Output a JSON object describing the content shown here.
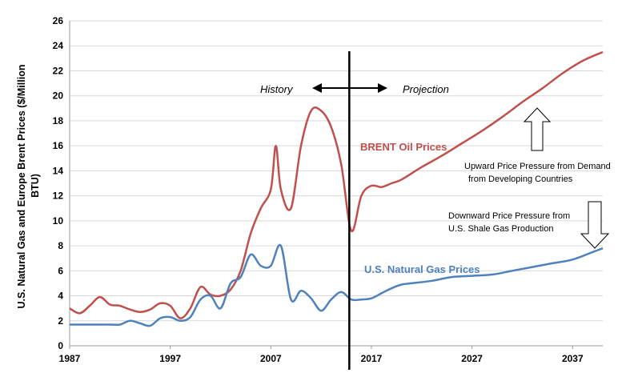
{
  "chart_data": {
    "type": "line",
    "ylabel_line1": "U.S. Natural Gas and Europe Brent Prices ($/Million",
    "ylabel_line2": "BTU)",
    "ylim": [
      0,
      26
    ],
    "yticks": [
      0,
      2,
      4,
      6,
      8,
      10,
      12,
      14,
      16,
      18,
      20,
      22,
      24,
      26
    ],
    "xlim": [
      1987,
      2040
    ],
    "xticks": [
      1987,
      1997,
      2007,
      2017,
      2027,
      2037
    ],
    "grid": "horizontal",
    "divider_year": 2014.8,
    "history_label": "History",
    "projection_label": "Projection",
    "series": [
      {
        "name": "BRENT Oil Prices",
        "color": "#c0504d",
        "x": [
          1987,
          1988,
          1989,
          1990,
          1991,
          1992,
          1993,
          1994,
          1995,
          1996,
          1997,
          1998,
          1999,
          2000,
          2001,
          2002,
          2003,
          2004,
          2005,
          2006,
          2007,
          2007.5,
          2008,
          2009,
          2010,
          2011,
          2012,
          2013,
          2014,
          2015,
          2016,
          2017,
          2018,
          2019,
          2020,
          2022,
          2024,
          2026,
          2028,
          2030,
          2032,
          2034,
          2036,
          2038,
          2040
        ],
        "values": [
          3.0,
          2.6,
          3.2,
          3.9,
          3.3,
          3.2,
          2.9,
          2.7,
          2.9,
          3.4,
          3.2,
          2.2,
          3.0,
          4.7,
          4.1,
          4.0,
          4.5,
          6.0,
          9.0,
          11.0,
          12.5,
          16.0,
          12.5,
          11.0,
          16.0,
          18.8,
          18.8,
          17.5,
          14.5,
          9.2,
          12.0,
          12.8,
          12.7,
          13.0,
          13.3,
          14.3,
          15.2,
          16.2,
          17.2,
          18.3,
          19.5,
          20.6,
          21.8,
          22.8,
          23.5
        ]
      },
      {
        "name": "U.S. Natural Gas Prices",
        "color": "#4f81bd",
        "x": [
          1987,
          1988,
          1989,
          1990,
          1991,
          1992,
          1993,
          1994,
          1995,
          1996,
          1997,
          1998,
          1999,
          2000,
          2001,
          2002,
          2003,
          2004,
          2005,
          2006,
          2007,
          2008,
          2009,
          2010,
          2011,
          2012,
          2013,
          2014,
          2015,
          2016,
          2017,
          2018,
          2019,
          2020,
          2021,
          2023,
          2025,
          2027,
          2029,
          2031,
          2033,
          2035,
          2037,
          2039,
          2040
        ],
        "values": [
          1.7,
          1.7,
          1.7,
          1.7,
          1.7,
          1.7,
          2.0,
          1.8,
          1.6,
          2.2,
          2.3,
          2.0,
          2.3,
          3.7,
          4.0,
          3.0,
          5.0,
          5.5,
          7.3,
          6.4,
          6.4,
          8.0,
          3.7,
          4.4,
          3.8,
          2.8,
          3.7,
          4.3,
          3.7,
          3.7,
          3.8,
          4.2,
          4.6,
          4.9,
          5.0,
          5.2,
          5.5,
          5.6,
          5.7,
          6.0,
          6.3,
          6.6,
          6.9,
          7.5,
          7.8
        ]
      }
    ],
    "annotations": {
      "brent_label": "BRENT Oil Prices",
      "gas_label": "U.S. Natural Gas Prices",
      "upward_line1": "Upward Price Pressure from Demand",
      "upward_line2": "from Developing Countries",
      "downward_line1": "Downward Price Pressure from",
      "downward_line2": "U.S. Shale Gas Production"
    }
  }
}
